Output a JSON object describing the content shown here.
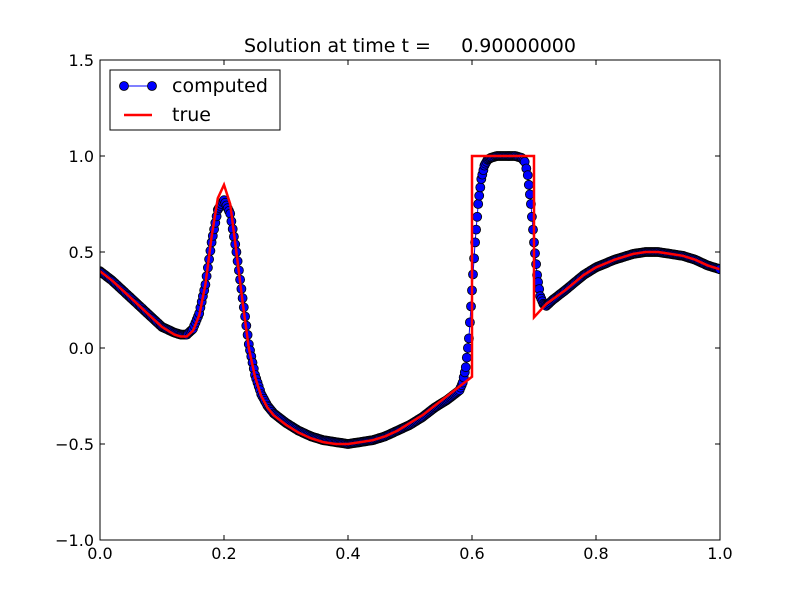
{
  "chart_data": {
    "type": "line",
    "title": "Solution at time t =     0.90000000",
    "xlim": [
      0.0,
      1.0
    ],
    "ylim": [
      -1.0,
      1.5
    ],
    "x_ticks": [
      "0.0",
      "0.2",
      "0.4",
      "0.6",
      "0.8",
      "1.0"
    ],
    "x_tick_values": [
      0.0,
      0.2,
      0.4,
      0.6,
      0.8,
      1.0
    ],
    "y_ticks": [
      "−1.0",
      "−0.5",
      "0.0",
      "0.5",
      "1.0",
      "1.5"
    ],
    "y_tick_values": [
      -1.0,
      -0.5,
      0.0,
      0.5,
      1.0,
      1.5
    ],
    "grid": false,
    "legend_position": "top-left",
    "series": [
      {
        "name": "computed",
        "style": "line-with-markers",
        "color": "#0000ff",
        "marker_edge_color": "#000000",
        "x": [
          0.0,
          0.02,
          0.04,
          0.06,
          0.08,
          0.1,
          0.12,
          0.13,
          0.14,
          0.15,
          0.16,
          0.17,
          0.18,
          0.19,
          0.2,
          0.21,
          0.22,
          0.23,
          0.24,
          0.25,
          0.26,
          0.27,
          0.28,
          0.3,
          0.32,
          0.34,
          0.36,
          0.38,
          0.4,
          0.42,
          0.44,
          0.46,
          0.48,
          0.5,
          0.52,
          0.54,
          0.56,
          0.58,
          0.585,
          0.59,
          0.595,
          0.6,
          0.605,
          0.61,
          0.615,
          0.62,
          0.625,
          0.63,
          0.64,
          0.65,
          0.66,
          0.67,
          0.68,
          0.685,
          0.69,
          0.695,
          0.7,
          0.705,
          0.71,
          0.715,
          0.72,
          0.73,
          0.75,
          0.78,
          0.8,
          0.83,
          0.86,
          0.88,
          0.9,
          0.92,
          0.94,
          0.96,
          0.98,
          1.0
        ],
        "y": [
          0.4,
          0.35,
          0.29,
          0.23,
          0.17,
          0.11,
          0.08,
          0.07,
          0.07,
          0.1,
          0.18,
          0.33,
          0.55,
          0.72,
          0.77,
          0.7,
          0.5,
          0.26,
          0.02,
          -0.14,
          -0.24,
          -0.3,
          -0.34,
          -0.39,
          -0.43,
          -0.46,
          -0.48,
          -0.49,
          -0.5,
          -0.49,
          -0.48,
          -0.46,
          -0.43,
          -0.4,
          -0.36,
          -0.31,
          -0.27,
          -0.22,
          -0.18,
          -0.1,
          0.05,
          0.3,
          0.55,
          0.75,
          0.88,
          0.95,
          0.98,
          0.99,
          1.0,
          1.0,
          1.0,
          1.0,
          0.99,
          0.97,
          0.9,
          0.75,
          0.55,
          0.38,
          0.27,
          0.23,
          0.22,
          0.25,
          0.3,
          0.38,
          0.42,
          0.46,
          0.49,
          0.5,
          0.5,
          0.49,
          0.48,
          0.46,
          0.43,
          0.41
        ]
      },
      {
        "name": "true",
        "style": "line",
        "color": "#ff0000",
        "x": [
          0.0,
          0.02,
          0.04,
          0.06,
          0.08,
          0.1,
          0.12,
          0.13,
          0.14,
          0.15,
          0.16,
          0.17,
          0.18,
          0.19,
          0.2,
          0.21,
          0.22,
          0.23,
          0.24,
          0.25,
          0.26,
          0.27,
          0.28,
          0.3,
          0.32,
          0.34,
          0.36,
          0.38,
          0.4,
          0.42,
          0.44,
          0.46,
          0.48,
          0.5,
          0.52,
          0.54,
          0.56,
          0.58,
          0.6,
          0.6,
          0.7,
          0.7,
          0.72,
          0.75,
          0.78,
          0.8,
          0.83,
          0.86,
          0.88,
          0.9,
          0.92,
          0.94,
          0.96,
          0.98,
          1.0
        ],
        "y": [
          0.4,
          0.35,
          0.29,
          0.23,
          0.17,
          0.11,
          0.07,
          0.06,
          0.06,
          0.09,
          0.17,
          0.33,
          0.58,
          0.78,
          0.85,
          0.75,
          0.5,
          0.24,
          0.0,
          -0.15,
          -0.25,
          -0.31,
          -0.35,
          -0.4,
          -0.44,
          -0.47,
          -0.49,
          -0.5,
          -0.5,
          -0.49,
          -0.48,
          -0.46,
          -0.43,
          -0.39,
          -0.35,
          -0.3,
          -0.25,
          -0.2,
          -0.15,
          1.0,
          1.0,
          0.16,
          0.23,
          0.3,
          0.38,
          0.42,
          0.46,
          0.49,
          0.5,
          0.5,
          0.49,
          0.48,
          0.46,
          0.43,
          0.41
        ]
      }
    ]
  }
}
